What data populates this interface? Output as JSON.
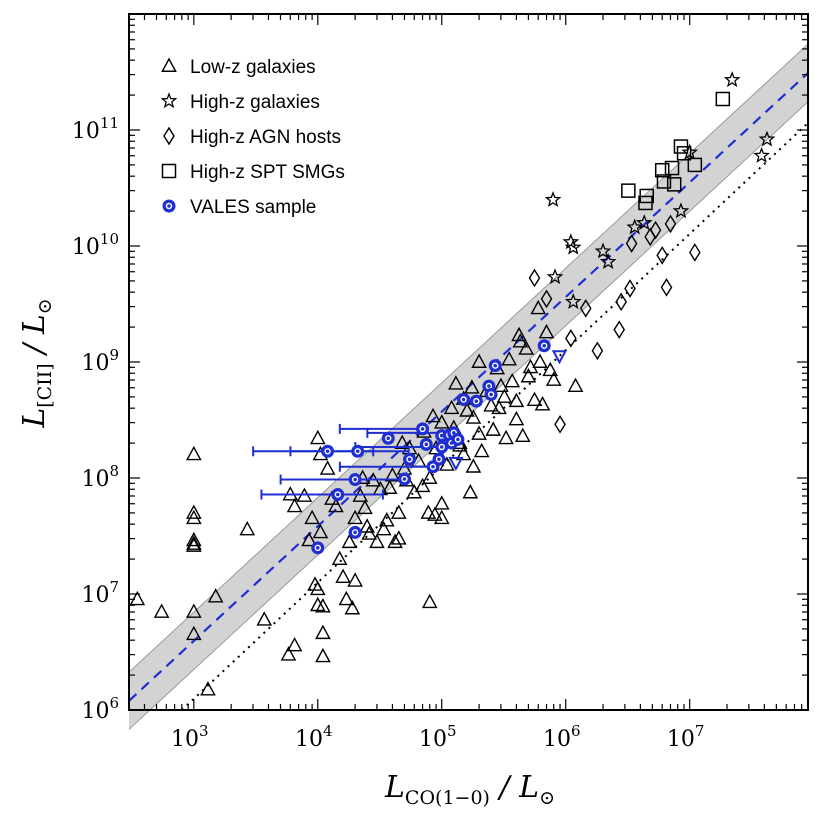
{
  "chart_data": {
    "type": "scatter",
    "scale": "log-log",
    "xlabel": "L_CO(1−0) / L⊙",
    "ylabel": "L_[CII] / L⊙",
    "xlim": [
      300,
      90000000
    ],
    "ylim": [
      1000000,
      1000000000000
    ],
    "x_ticks": [
      1000,
      10000,
      100000,
      1000000,
      10000000
    ],
    "x_tick_labels": [
      "10^3",
      "10^4",
      "10^5",
      "10^6",
      "10^7"
    ],
    "y_ticks": [
      1000000,
      10000000,
      100000000,
      1000000000,
      10000000000,
      100000000000
    ],
    "y_tick_labels": [
      "10^6",
      "10^7",
      "10^8",
      "10^9",
      "10^10",
      "10^11"
    ],
    "legend": {
      "placement": "top-left",
      "entries": [
        {
          "label": "Low-z galaxies",
          "marker": "triangle"
        },
        {
          "label": "High-z galaxies",
          "marker": "star"
        },
        {
          "label": "High-z AGN hosts",
          "marker": "diamond"
        },
        {
          "label": "High-z SPT SMGs",
          "marker": "square"
        },
        {
          "label": "VALES sample",
          "marker": "blue-circle"
        }
      ]
    },
    "lines": [
      {
        "name": "Best-fit relation",
        "style": "dashed",
        "color": "#1f2fd1",
        "x": [
          300,
          90000000
        ],
        "y": [
          1200000,
          310000000000
        ]
      },
      {
        "name": "Reference relation",
        "style": "dotted",
        "color": "#000000",
        "x": [
          800,
          90000000
        ],
        "y": [
          1000000,
          115000000000
        ]
      }
    ],
    "band": {
      "name": "Scatter band",
      "x": [
        300,
        90000000
      ],
      "y_low": [
        680000,
        175000000000
      ],
      "y_high": [
        2120000,
        550000000000
      ]
    },
    "series": [
      {
        "name": "Low-z galaxies",
        "marker": "triangle",
        "points": [
          [
            350,
            9000000
          ],
          [
            550,
            7000000
          ],
          [
            1000,
            7000000
          ],
          [
            1000,
            4500000
          ],
          [
            1300,
            1500000
          ],
          [
            1500,
            9500000
          ],
          [
            1000,
            160000000
          ],
          [
            1000,
            50000000
          ],
          [
            1000,
            45000000
          ],
          [
            1000,
            29000000
          ],
          [
            1000,
            27000000
          ],
          [
            1000,
            26000000
          ],
          [
            2700,
            36000000
          ],
          [
            3700,
            6000000
          ],
          [
            5800,
            3000000
          ],
          [
            6500,
            3600000
          ],
          [
            6000,
            72000000
          ],
          [
            6500,
            57000000
          ],
          [
            7800,
            70000000
          ],
          [
            8500,
            29000000
          ],
          [
            9000,
            45000000
          ],
          [
            10000,
            11000000
          ],
          [
            10000,
            8000000
          ],
          [
            10500,
            34000000
          ],
          [
            11000,
            4600000
          ],
          [
            11000,
            2900000
          ],
          [
            9500,
            12000000
          ],
          [
            11000,
            7800000
          ],
          [
            10000,
            220000000
          ],
          [
            10500,
            160000000
          ],
          [
            12000,
            120000000
          ],
          [
            13000,
            66000000
          ],
          [
            14000,
            57000000
          ],
          [
            15000,
            20000000
          ],
          [
            16000,
            14000000
          ],
          [
            17000,
            9000000
          ],
          [
            18000,
            28000000
          ],
          [
            19000,
            7500000
          ],
          [
            20000,
            13000000
          ],
          [
            20000,
            45000000
          ],
          [
            22000,
            70000000
          ],
          [
            23000,
            100000000
          ],
          [
            24000,
            55000000
          ],
          [
            25000,
            38000000
          ],
          [
            26000,
            33000000
          ],
          [
            28000,
            95000000
          ],
          [
            30000,
            28000000
          ],
          [
            32000,
            80000000
          ],
          [
            34000,
            36000000
          ],
          [
            36000,
            43000000
          ],
          [
            38000,
            82000000
          ],
          [
            40000,
            105000000
          ],
          [
            42000,
            28000000
          ],
          [
            45000,
            30000000
          ],
          [
            45000,
            50000000
          ],
          [
            48000,
            200000000
          ],
          [
            50000,
            120000000
          ],
          [
            52000,
            95000000
          ],
          [
            55000,
            180000000
          ],
          [
            60000,
            75000000
          ],
          [
            65000,
            140000000
          ],
          [
            70000,
            85000000
          ],
          [
            72000,
            250000000
          ],
          [
            78000,
            50000000
          ],
          [
            80000,
            8500000
          ],
          [
            80000,
            100000000
          ],
          [
            85000,
            340000000
          ],
          [
            88000,
            48000000
          ],
          [
            90000,
            180000000
          ],
          [
            100000,
            60000000
          ],
          [
            100000,
            300000000
          ],
          [
            100000,
            45000000
          ],
          [
            110000,
            130000000
          ],
          [
            120000,
            400000000
          ],
          [
            125000,
            270000000
          ],
          [
            130000,
            650000000
          ],
          [
            140000,
            190000000
          ],
          [
            140000,
            200000000
          ],
          [
            150000,
            480000000
          ],
          [
            150000,
            160000000
          ],
          [
            160000,
            380000000
          ],
          [
            170000,
            75000000
          ],
          [
            175000,
            600000000
          ],
          [
            180000,
            330000000
          ],
          [
            180000,
            125000000
          ],
          [
            200000,
            1000000000
          ],
          [
            200000,
            240000000
          ],
          [
            210000,
            170000000
          ],
          [
            230000,
            560000000
          ],
          [
            250000,
            420000000
          ],
          [
            260000,
            260000000
          ],
          [
            280000,
            880000000
          ],
          [
            290000,
            400000000
          ],
          [
            300000,
            620000000
          ],
          [
            320000,
            500000000
          ],
          [
            330000,
            220000000
          ],
          [
            350000,
            1050000000
          ],
          [
            370000,
            680000000
          ],
          [
            400000,
            460000000
          ],
          [
            400000,
            320000000
          ],
          [
            420000,
            1700000000
          ],
          [
            430000,
            1500000000
          ],
          [
            450000,
            230000000
          ],
          [
            480000,
            1300000000
          ],
          [
            500000,
            750000000
          ],
          [
            520000,
            900000000
          ],
          [
            560000,
            470000000
          ],
          [
            600000,
            2900000000
          ],
          [
            620000,
            1000000000
          ],
          [
            650000,
            430000000
          ],
          [
            700000,
            1800000000
          ],
          [
            750000,
            850000000
          ],
          [
            800000,
            700000000
          ],
          [
            1200000,
            620000000
          ]
        ]
      },
      {
        "name": "High-z galaxies",
        "marker": "star",
        "points": [
          [
            790000,
            25000000000
          ],
          [
            820000,
            5400000000
          ],
          [
            1100000,
            10800000000
          ],
          [
            1150000,
            9700000000
          ],
          [
            1150000,
            3300000000
          ],
          [
            2000000,
            9000000000
          ],
          [
            2200000,
            7300000000
          ],
          [
            3600000,
            14500000000
          ],
          [
            4300000,
            15800000000
          ],
          [
            8500000,
            20000000000
          ],
          [
            10000000,
            64000000000
          ],
          [
            22000000,
            270000000000
          ],
          [
            38000000,
            60000000000
          ],
          [
            42000000,
            83000000000
          ]
        ]
      },
      {
        "name": "High-z AGN hosts",
        "marker": "diamond",
        "points": [
          [
            560000,
            5300000000
          ],
          [
            700000,
            3500000000
          ],
          [
            900000,
            290000000
          ],
          [
            1100000,
            1600000000
          ],
          [
            1450000,
            2900000000
          ],
          [
            1800000,
            1250000000
          ],
          [
            2700000,
            1900000000
          ],
          [
            2800000,
            3300000000
          ],
          [
            3300000,
            4300000000
          ],
          [
            3400000,
            10500000000
          ],
          [
            4800000,
            12000000000
          ],
          [
            5300000,
            13700000000
          ],
          [
            6000000,
            8300000000
          ],
          [
            6500000,
            4400000000
          ],
          [
            7000000,
            15500000000
          ],
          [
            11000000,
            8800000000
          ]
        ]
      },
      {
        "name": "High-z SPT SMGs",
        "marker": "square",
        "points": [
          [
            3200000,
            30000000000
          ],
          [
            4400000,
            23500000000
          ],
          [
            4500000,
            27000000000
          ],
          [
            6000000,
            45000000000
          ],
          [
            6200000,
            36000000000
          ],
          [
            7200000,
            47000000000
          ],
          [
            7500000,
            34000000000
          ],
          [
            8500000,
            72000000000
          ],
          [
            9000000,
            63000000000
          ],
          [
            11000000,
            50000000000
          ],
          [
            18500000,
            185000000000
          ]
        ]
      },
      {
        "name": "VALES sample",
        "marker": "blue-circle",
        "points": [
          [
            10000,
            25000000
          ],
          [
            12000,
            170000000
          ],
          [
            14500,
            72000000
          ],
          [
            20000,
            97000000
          ],
          [
            20000,
            34000000
          ],
          [
            21000,
            170000000
          ],
          [
            37000,
            220000000
          ],
          [
            50000,
            98000000
          ],
          [
            55000,
            145000000
          ],
          [
            70000,
            265000000
          ],
          [
            75000,
            195000000
          ],
          [
            85000,
            125000000
          ],
          [
            95000,
            145000000
          ],
          [
            100000,
            185000000
          ],
          [
            100000,
            232000000
          ],
          [
            115000,
            235000000
          ],
          [
            120000,
            200000000
          ],
          [
            125000,
            245000000
          ],
          [
            135000,
            215000000
          ],
          [
            150000,
            475000000
          ],
          [
            190000,
            460000000
          ],
          [
            240000,
            620000000
          ],
          [
            250000,
            525000000
          ],
          [
            270000,
            930000000
          ],
          [
            670000,
            1380000000
          ]
        ],
        "xerr_left": [
          [
            12000,
            170000000,
            9000
          ],
          [
            14500,
            72000000,
            11000
          ],
          [
            20000,
            97000000,
            15000
          ],
          [
            21000,
            170000000,
            15000
          ],
          [
            70000,
            265000000,
            55000
          ],
          [
            85000,
            125000000,
            70000
          ],
          [
            100000,
            185000000,
            80000
          ],
          [
            125000,
            245000000,
            100000
          ]
        ],
        "xerr_right": [
          [
            12000,
            170000000,
            16000
          ],
          [
            14500,
            72000000,
            19000
          ],
          [
            21000,
            170000000,
            33000
          ],
          [
            20000,
            97000000,
            28000
          ]
        ],
        "upper_limits": [
          [
            890000,
            1120000000
          ],
          [
            130000,
            135000000
          ]
        ]
      }
    ]
  }
}
